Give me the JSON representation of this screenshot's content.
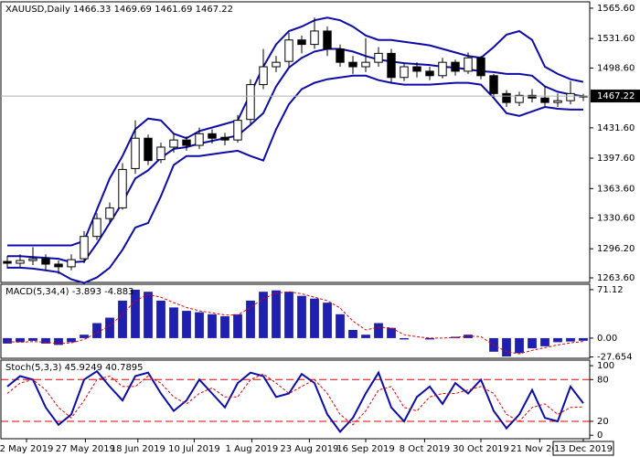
{
  "chart_data": [
    {
      "type": "candlestick",
      "title": "XAUUSD,Daily  1466.33 1469.69 1461.69 1467.22",
      "open": [
        1282,
        1280,
        1283,
        1285,
        1279,
        1276,
        1285,
        1310,
        1330,
        1342,
        1386,
        1420,
        1396,
        1410,
        1418,
        1412,
        1425,
        1421,
        1418,
        1441,
        1480,
        1500,
        1506,
        1530,
        1525,
        1540,
        1520,
        1505,
        1500,
        1505,
        1515,
        1488,
        1500,
        1495,
        1490,
        1505,
        1495,
        1510,
        1490,
        1470,
        1460,
        1468,
        1465,
        1460,
        1462,
        1466.33
      ],
      "high": [
        1288,
        1290,
        1298,
        1290,
        1283,
        1290,
        1316,
        1336,
        1348,
        1392,
        1440,
        1424,
        1415,
        1425,
        1422,
        1432,
        1430,
        1426,
        1446,
        1486,
        1520,
        1512,
        1538,
        1535,
        1555,
        1545,
        1525,
        1512,
        1532,
        1522,
        1520,
        1504,
        1505,
        1500,
        1510,
        1508,
        1516,
        1512,
        1492,
        1474,
        1472,
        1475,
        1478,
        1470,
        1484,
        1469.69
      ],
      "low": [
        1274,
        1276,
        1278,
        1272,
        1268,
        1272,
        1280,
        1306,
        1326,
        1340,
        1380,
        1390,
        1392,
        1404,
        1406,
        1408,
        1414,
        1412,
        1415,
        1436,
        1475,
        1494,
        1500,
        1515,
        1520,
        1512,
        1500,
        1492,
        1494,
        1500,
        1482,
        1484,
        1488,
        1485,
        1487,
        1490,
        1492,
        1486,
        1465,
        1455,
        1456,
        1460,
        1456,
        1455,
        1458,
        1461.69
      ],
      "close": [
        1280,
        1283,
        1285,
        1279,
        1276,
        1284,
        1310,
        1330,
        1342,
        1385,
        1420,
        1395,
        1410,
        1418,
        1412,
        1425,
        1420,
        1418,
        1440,
        1480,
        1500,
        1505,
        1530,
        1525,
        1540,
        1520,
        1505,
        1500,
        1505,
        1515,
        1488,
        1500,
        1495,
        1490,
        1505,
        1495,
        1510,
        1490,
        1470,
        1460,
        1468,
        1465,
        1460,
        1462,
        1470,
        1467.22
      ],
      "up_color": "#ffffff",
      "down_color": "#000000",
      "bands": [
        {
          "color": "#0c0ca8",
          "values": [
            1300,
            1300,
            1300,
            1300,
            1300,
            1300,
            1305,
            1340,
            1375,
            1400,
            1430,
            1442,
            1440,
            1425,
            1420,
            1428,
            1432,
            1436,
            1440,
            1470,
            1500,
            1525,
            1540,
            1545,
            1552,
            1555,
            1552,
            1545,
            1535,
            1530,
            1530,
            1528,
            1526,
            1524,
            1520,
            1516,
            1512,
            1510,
            1522,
            1536,
            1540,
            1530,
            1500,
            1492,
            1486,
            1483
          ]
        },
        {
          "color": "#0c0ca8",
          "values": [
            1288,
            1288,
            1287,
            1286,
            1285,
            1281,
            1282,
            1302,
            1325,
            1348,
            1375,
            1384,
            1398,
            1408,
            1410,
            1414,
            1417,
            1420,
            1423,
            1435,
            1448,
            1478,
            1499,
            1510,
            1517,
            1520,
            1520,
            1517,
            1512,
            1508,
            1506,
            1504,
            1503,
            1502,
            1500,
            1499,
            1497,
            1495,
            1494,
            1492,
            1492,
            1490,
            1478,
            1472,
            1469,
            1467
          ]
        },
        {
          "color": "#0c0ca8",
          "values": [
            1275,
            1275,
            1274,
            1272,
            1270,
            1262,
            1258,
            1264,
            1275,
            1295,
            1320,
            1325,
            1355,
            1390,
            1400,
            1400,
            1402,
            1404,
            1406,
            1400,
            1395,
            1430,
            1458,
            1475,
            1482,
            1486,
            1488,
            1490,
            1490,
            1485,
            1482,
            1480,
            1480,
            1480,
            1481,
            1482,
            1482,
            1480,
            1465,
            1448,
            1445,
            1450,
            1455,
            1453,
            1452,
            1452
          ]
        }
      ],
      "ylim": [
        1258.5,
        1572.7
      ],
      "yticks": [
        {
          "value": 1263.6,
          "label": "1263.60"
        },
        {
          "value": 1296.2,
          "label": "1296.20"
        },
        {
          "value": 1330.6,
          "label": "1330.60"
        },
        {
          "value": 1363.6,
          "label": "1363.60"
        },
        {
          "value": 1397.6,
          "label": "1397.60"
        },
        {
          "value": 1431.6,
          "label": "1431.60"
        },
        {
          "value": 1498.6,
          "label": "1498.60"
        },
        {
          "value": 1531.6,
          "label": "1531.60"
        },
        {
          "value": 1565.6,
          "label": "1565.60"
        }
      ]
    },
    {
      "type": "macd",
      "title": "MACD(5,34,4) -3.893 -4.883",
      "histogram": {
        "color": "#2020b0",
        "values": [
          -8,
          -6,
          -4,
          -8,
          -10,
          -6,
          5,
          22,
          30,
          55,
          71,
          68,
          55,
          45,
          40,
          38,
          35,
          32,
          35,
          55,
          68,
          70,
          68,
          62,
          58,
          52,
          35,
          12,
          5,
          22,
          15,
          -2,
          0,
          -2,
          0,
          2,
          5,
          0,
          -20,
          -27,
          -22,
          -15,
          -12,
          -6,
          -5,
          -3.893
        ]
      },
      "signal": {
        "color": "#e00000",
        "values": [
          -5,
          -6,
          -5,
          -6,
          -8,
          -7,
          -2,
          8,
          18,
          35,
          55,
          64,
          60,
          52,
          45,
          40,
          37,
          34,
          34,
          45,
          58,
          66,
          68,
          65,
          60,
          55,
          44,
          25,
          12,
          16,
          15,
          5,
          2,
          0,
          0,
          1,
          3,
          2,
          -10,
          -20,
          -23,
          -18,
          -14,
          -10,
          -7,
          -4.883
        ]
      },
      "ylim": [
        -29.6,
        79
      ],
      "yticks": [
        -27.654,
        {
          "value": 0,
          "label": "0.00"
        },
        71.12
      ]
    },
    {
      "type": "stochastic",
      "title": "Stoch(5,3,3) 45.9249 40.7895",
      "series": [
        {
          "color": "#0c0ca8",
          "dashed": false,
          "values": [
            70,
            85,
            80,
            40,
            15,
            30,
            80,
            92,
            70,
            50,
            85,
            90,
            60,
            35,
            50,
            80,
            60,
            40,
            75,
            90,
            85,
            55,
            60,
            88,
            75,
            30,
            5,
            25,
            60,
            90,
            40,
            20,
            55,
            70,
            45,
            75,
            60,
            80,
            35,
            10,
            30,
            65,
            25,
            20,
            70,
            45.9249
          ]
        },
        {
          "color": "#e00000",
          "dashed": true,
          "values": [
            60,
            75,
            80,
            65,
            40,
            25,
            50,
            80,
            85,
            70,
            70,
            85,
            75,
            55,
            45,
            60,
            68,
            55,
            55,
            80,
            88,
            75,
            60,
            70,
            80,
            60,
            30,
            15,
            35,
            65,
            70,
            40,
            35,
            55,
            60,
            60,
            65,
            70,
            60,
            30,
            20,
            40,
            45,
            30,
            40,
            40.7895
          ]
        }
      ],
      "levels": [
        80,
        20
      ],
      "level_color": "#e00000",
      "ylim": [
        -5,
        108
      ],
      "yticks": [
        0,
        20,
        80,
        100
      ],
      "xlim": [
        -0.5,
        45.5
      ],
      "xticks": [
        {
          "value": 1.5,
          "label": "2 May 2019"
        },
        {
          "value": 6.1,
          "label": "27 May 2019"
        },
        {
          "value": 10.2,
          "label": "18 Jun 2019"
        },
        {
          "value": 14.6,
          "label": "10 Jul 2019"
        },
        {
          "value": 19.1,
          "label": "1 Aug 2019"
        },
        {
          "value": 23.6,
          "label": "23 Aug 2019"
        },
        {
          "value": 28.0,
          "label": "16 Sep 2019"
        },
        {
          "value": 32.6,
          "label": "8 Oct 2019"
        },
        {
          "value": 37.0,
          "label": "30 Oct 2019"
        },
        {
          "value": 41.6,
          "label": "21 Nov 2019"
        },
        {
          "value": 45,
          "label": "13 Dec 2019"
        }
      ]
    }
  ]
}
